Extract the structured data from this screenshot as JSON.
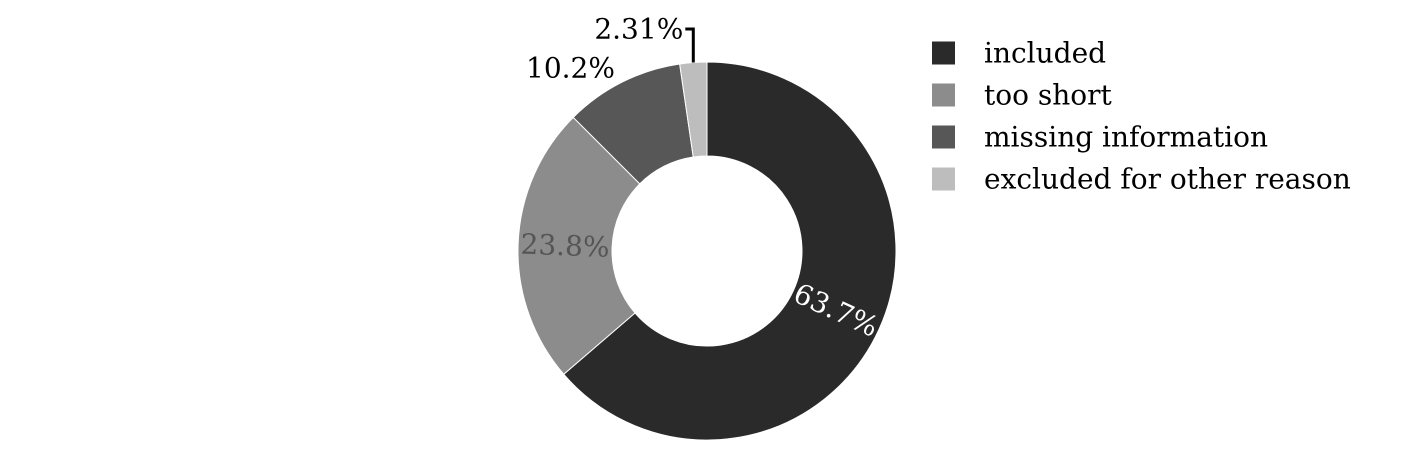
{
  "chart_data": {
    "type": "pie",
    "variant": "donut",
    "title": "",
    "start_angle_deg": 0,
    "direction": "clockwise",
    "slices": [
      {
        "label": "included",
        "value": 63.7,
        "display": "63.7%",
        "color": "#2a2a2a",
        "label_color": "#ffffff",
        "label_position": "inside"
      },
      {
        "label": "too short",
        "value": 23.8,
        "display": "23.8%",
        "color": "#8c8c8c",
        "label_color": "#555555",
        "label_position": "inside"
      },
      {
        "label": "missing information",
        "value": 10.2,
        "display": "10.2%",
        "color": "#575757",
        "label_color": "#000000",
        "label_position": "outside"
      },
      {
        "label": "excluded for other reason",
        "value": 2.31,
        "display": "2.31%",
        "color": "#bdbdbd",
        "label_color": "#000000",
        "label_position": "outside-leader"
      }
    ],
    "legend": {
      "placement": "top-right",
      "items": [
        "included",
        "too short",
        "missing information",
        "excluded for other reason"
      ]
    }
  }
}
